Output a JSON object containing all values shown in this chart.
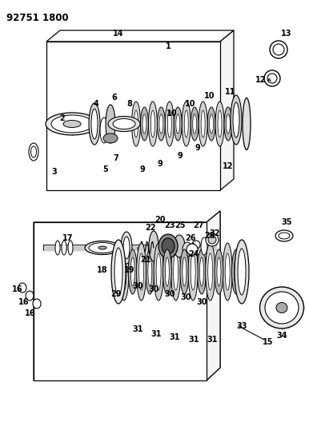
{
  "title": "92751 1800",
  "bg_color": "#ffffff",
  "line_color": "#000000",
  "title_fontsize": 8.5,
  "label_fontsize": 7,
  "fig_width": 3.86,
  "fig_height": 5.33,
  "dpi": 100
}
